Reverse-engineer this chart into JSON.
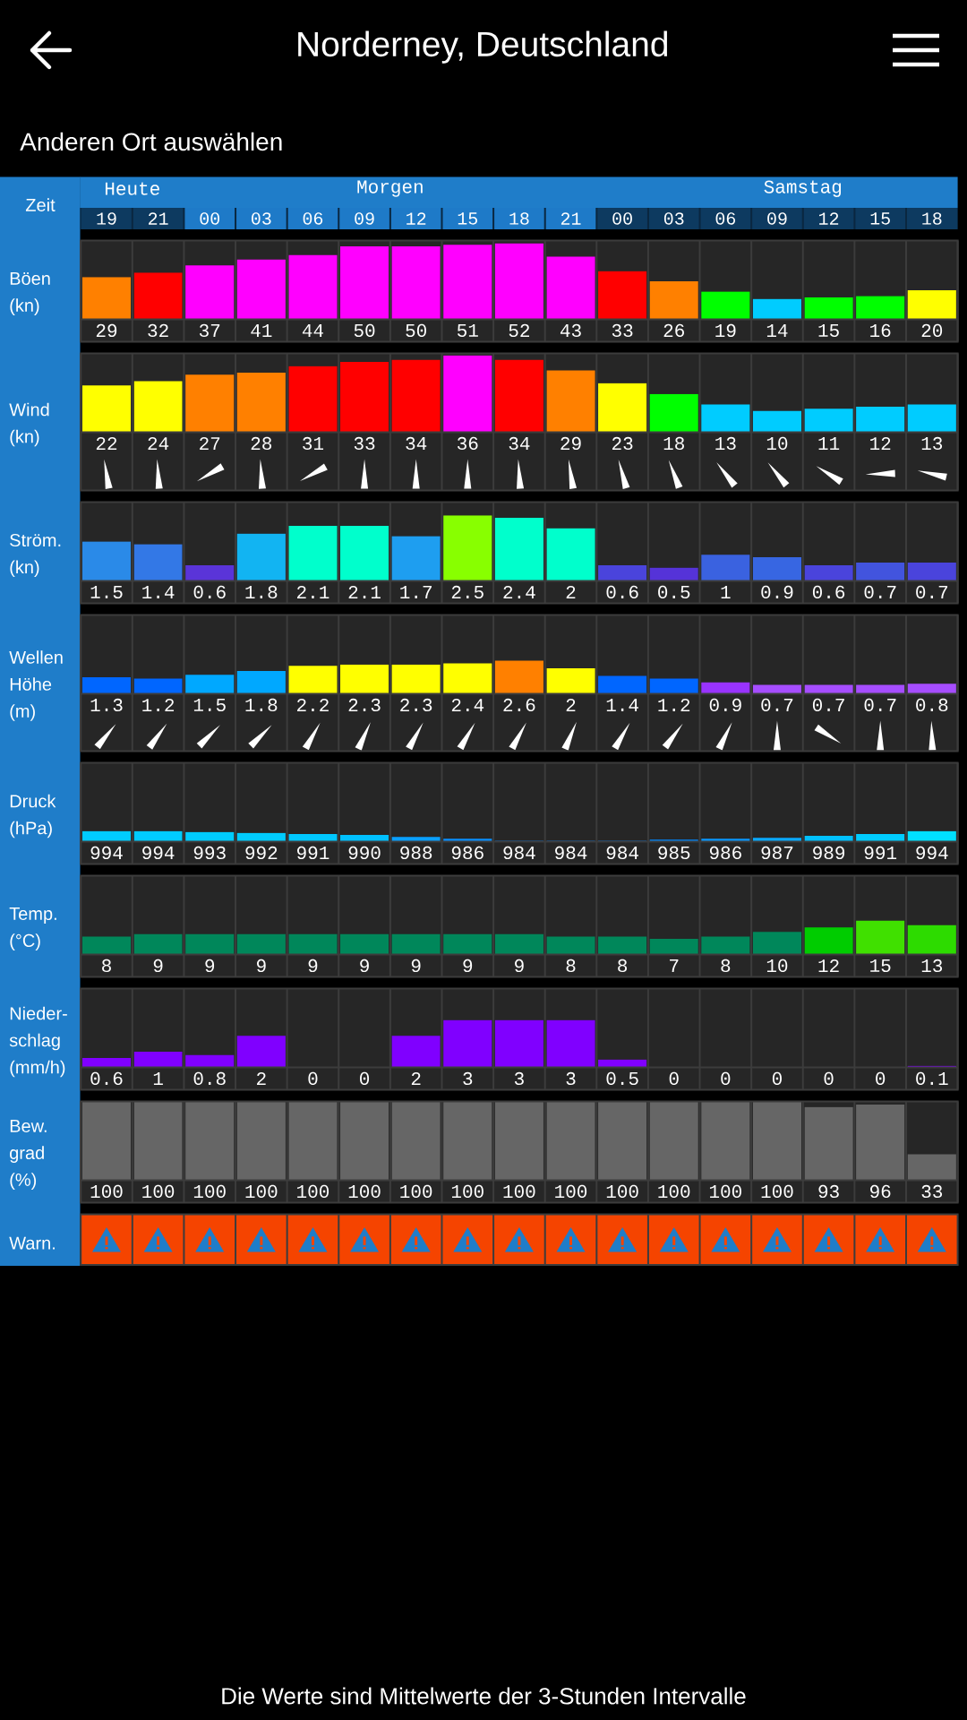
{
  "chart_data": [
    {
      "type": "bar",
      "title": "Norderney, Deutschland",
      "subtitle": "Anderen Ort auswählen",
      "xlabel": "Zeit",
      "ylabel": "Böen (kn)",
      "annotations": [
        "Heute",
        "Morgen",
        "Samstag"
      ],
      "categories": [
        "19",
        "21",
        "00",
        "03",
        "06",
        "09",
        "12",
        "15",
        "18",
        "21",
        "00",
        "03",
        "06",
        "09",
        "12",
        "15",
        "18"
      ],
      "values": [
        29,
        32,
        37,
        41,
        44,
        50,
        50,
        51,
        52,
        43,
        33,
        26,
        19,
        14,
        15,
        16,
        20
      ],
      "colors": [
        "#ff8000",
        "#ff0000",
        "#ff00ff",
        "#ff00ff",
        "#ff00ff",
        "#ff00ff",
        "#ff00ff",
        "#ff00ff",
        "#ff00ff",
        "#ff00ff",
        "#ff0000",
        "#ff8000",
        "#00ff00",
        "#00ccff",
        "#00ff00",
        "#00ff00",
        "#ffff00"
      ],
      "ylim": [
        0,
        54
      ],
      "data_labels": true,
      "grid": "x",
      "tick_labels": "x"
    },
    {
      "type": "bar",
      "ylabel": "Wind (kn)",
      "categories": [
        "19",
        "21",
        "00",
        "03",
        "06",
        "09",
        "12",
        "15",
        "18",
        "21",
        "00",
        "03",
        "06",
        "09",
        "12",
        "15",
        "18"
      ],
      "values": [
        22,
        24,
        27,
        28,
        31,
        33,
        34,
        36,
        34,
        29,
        23,
        18,
        13,
        10,
        11,
        12,
        13
      ],
      "colors": [
        "#ffff00",
        "#ffff00",
        "#ff8000",
        "#ff8000",
        "#ff0000",
        "#ff0000",
        "#ff0000",
        "#ff00ff",
        "#ff0000",
        "#ff8000",
        "#ffff00",
        "#00ff00",
        "#00ccff",
        "#00ccff",
        "#00ccff",
        "#00ccff",
        "#00ccff"
      ],
      "ylim": [
        0,
        37
      ],
      "data_labels": true,
      "grid": "x",
      "tick_labels": false
    },
    {
      "type": "bar",
      "ylabel": "Ström. (kn)",
      "categories": [
        "19",
        "21",
        "00",
        "03",
        "06",
        "09",
        "12",
        "15",
        "18",
        "21",
        "00",
        "03",
        "06",
        "09",
        "12",
        "15",
        "18"
      ],
      "values": [
        1.5,
        1.4,
        0.6,
        1.8,
        2.1,
        2.1,
        1.7,
        2.5,
        2.4,
        2,
        0.6,
        0.5,
        1,
        0.9,
        0.6,
        0.7,
        0.7
      ],
      "colors": [
        "#2a8ae8",
        "#3378e6",
        "#5a34d8",
        "#12b4f2",
        "#00ffcc",
        "#00ffcc",
        "#1e9ef0",
        "#88ff00",
        "#00ffcc",
        "#00ffcc",
        "#4a44dc",
        "#5533d8",
        "#3a62e0",
        "#3766e2",
        "#4a44dc",
        "#4254de",
        "#4a44dc"
      ],
      "ylim": [
        0,
        3
      ],
      "data_labels": true,
      "grid": "x",
      "tick_labels": false
    },
    {
      "type": "bar",
      "ylabel": "Wellen Höhe (m)",
      "categories": [
        "19",
        "21",
        "00",
        "03",
        "06",
        "09",
        "12",
        "15",
        "18",
        "21",
        "00",
        "03",
        "06",
        "09",
        "12",
        "15",
        "18"
      ],
      "values": [
        1.3,
        1.2,
        1.5,
        1.8,
        2.2,
        2.3,
        2.3,
        2.4,
        2.6,
        2,
        1.4,
        1.2,
        0.9,
        0.7,
        0.7,
        0.7,
        0.8
      ],
      "colors": [
        "#0066ff",
        "#0066ff",
        "#00a8ff",
        "#00a8ff",
        "#ffff00",
        "#ffff00",
        "#ffff00",
        "#ffff00",
        "#ff8000",
        "#ffff00",
        "#0066ff",
        "#0066ff",
        "#9933ff",
        "#a64dff",
        "#a64dff",
        "#a64dff",
        "#a64dff"
      ],
      "ylim": [
        0,
        6.2
      ],
      "data_labels": true,
      "grid": "x",
      "tick_labels": false
    },
    {
      "type": "bar",
      "ylabel": "Druck (hPa)",
      "categories": [
        "19",
        "21",
        "00",
        "03",
        "06",
        "09",
        "12",
        "15",
        "18",
        "21",
        "00",
        "03",
        "06",
        "09",
        "12",
        "15",
        "18"
      ],
      "values": [
        994,
        994,
        993,
        992,
        991,
        990,
        988,
        986,
        984,
        984,
        984,
        985,
        986,
        987,
        989,
        991,
        994
      ],
      "colors": [
        "#00ccff",
        "#00ccff",
        "#00ccff",
        "#00ccff",
        "#00c8ff",
        "#00c0ff",
        "#0aa0ff",
        "#0a90ff",
        "#0080ff",
        "#0080ff",
        "#0080ff",
        "#0088ff",
        "#0a98ff",
        "#0aaaff",
        "#00c0ff",
        "#00ccff",
        "#00e0ff"
      ],
      "ylim": [
        983,
        1065
      ],
      "data_labels": true,
      "grid": "x",
      "tick_labels": false
    },
    {
      "type": "bar",
      "ylabel": "Temp. (°C)",
      "categories": [
        "19",
        "21",
        "00",
        "03",
        "06",
        "09",
        "12",
        "15",
        "18",
        "21",
        "00",
        "03",
        "06",
        "09",
        "12",
        "15",
        "18"
      ],
      "values": [
        8,
        9,
        9,
        9,
        9,
        9,
        9,
        9,
        9,
        8,
        8,
        7,
        8,
        10,
        12,
        15,
        13
      ],
      "colors": [
        "#00875a",
        "#00875a",
        "#00875a",
        "#00875a",
        "#00875a",
        "#00875a",
        "#00875a",
        "#00875a",
        "#00875a",
        "#00875a",
        "#00875a",
        "#00875a",
        "#00875a",
        "#00875a",
        "#00cc00",
        "#40e000",
        "#2ddb00"
      ],
      "ylim": [
        0,
        35
      ],
      "data_labels": true,
      "grid": "x",
      "tick_labels": false
    },
    {
      "type": "bar",
      "ylabel": "Nieder-schlag (mm/h)",
      "categories": [
        "19",
        "21",
        "00",
        "03",
        "06",
        "09",
        "12",
        "15",
        "18",
        "21",
        "00",
        "03",
        "06",
        "09",
        "12",
        "15",
        "18"
      ],
      "values": [
        0.6,
        1,
        0.8,
        2,
        0,
        0,
        2,
        3,
        3,
        3,
        0.5,
        0,
        0,
        0,
        0,
        0,
        0.1
      ],
      "colors": [
        "#8000ff",
        "#8000ff",
        "#8000ff",
        "#8000ff",
        "#8000ff",
        "#8000ff",
        "#8000ff",
        "#8000ff",
        "#8000ff",
        "#8000ff",
        "#8000ff",
        "#8000ff",
        "#8000ff",
        "#8000ff",
        "#8000ff",
        "#8000ff",
        "#8000ff"
      ],
      "ylim": [
        0,
        5
      ],
      "data_labels": true,
      "grid": "x",
      "tick_labels": false
    },
    {
      "type": "bar",
      "ylabel": "Bew. grad (%)",
      "categories": [
        "19",
        "21",
        "00",
        "03",
        "06",
        "09",
        "12",
        "15",
        "18",
        "21",
        "00",
        "03",
        "06",
        "09",
        "12",
        "15",
        "18"
      ],
      "values": [
        100,
        100,
        100,
        100,
        100,
        100,
        100,
        100,
        100,
        100,
        100,
        100,
        100,
        100,
        93,
        96,
        33
      ],
      "colors": [
        "#666666",
        "#666666",
        "#666666",
        "#666666",
        "#666666",
        "#666666",
        "#666666",
        "#666666",
        "#666666",
        "#666666",
        "#666666",
        "#666666",
        "#666666",
        "#666666",
        "#666666",
        "#666666",
        "#666666"
      ],
      "ylim": [
        0,
        100
      ],
      "data_labels": true,
      "grid": "x",
      "tick_labels": false
    },
    {
      "type": "other",
      "ylabel": "Warn.",
      "annotations": [
        "Die Werte sind Mittelwerte der 3-Stunden Intervalle"
      ]
    }
  ]
}
